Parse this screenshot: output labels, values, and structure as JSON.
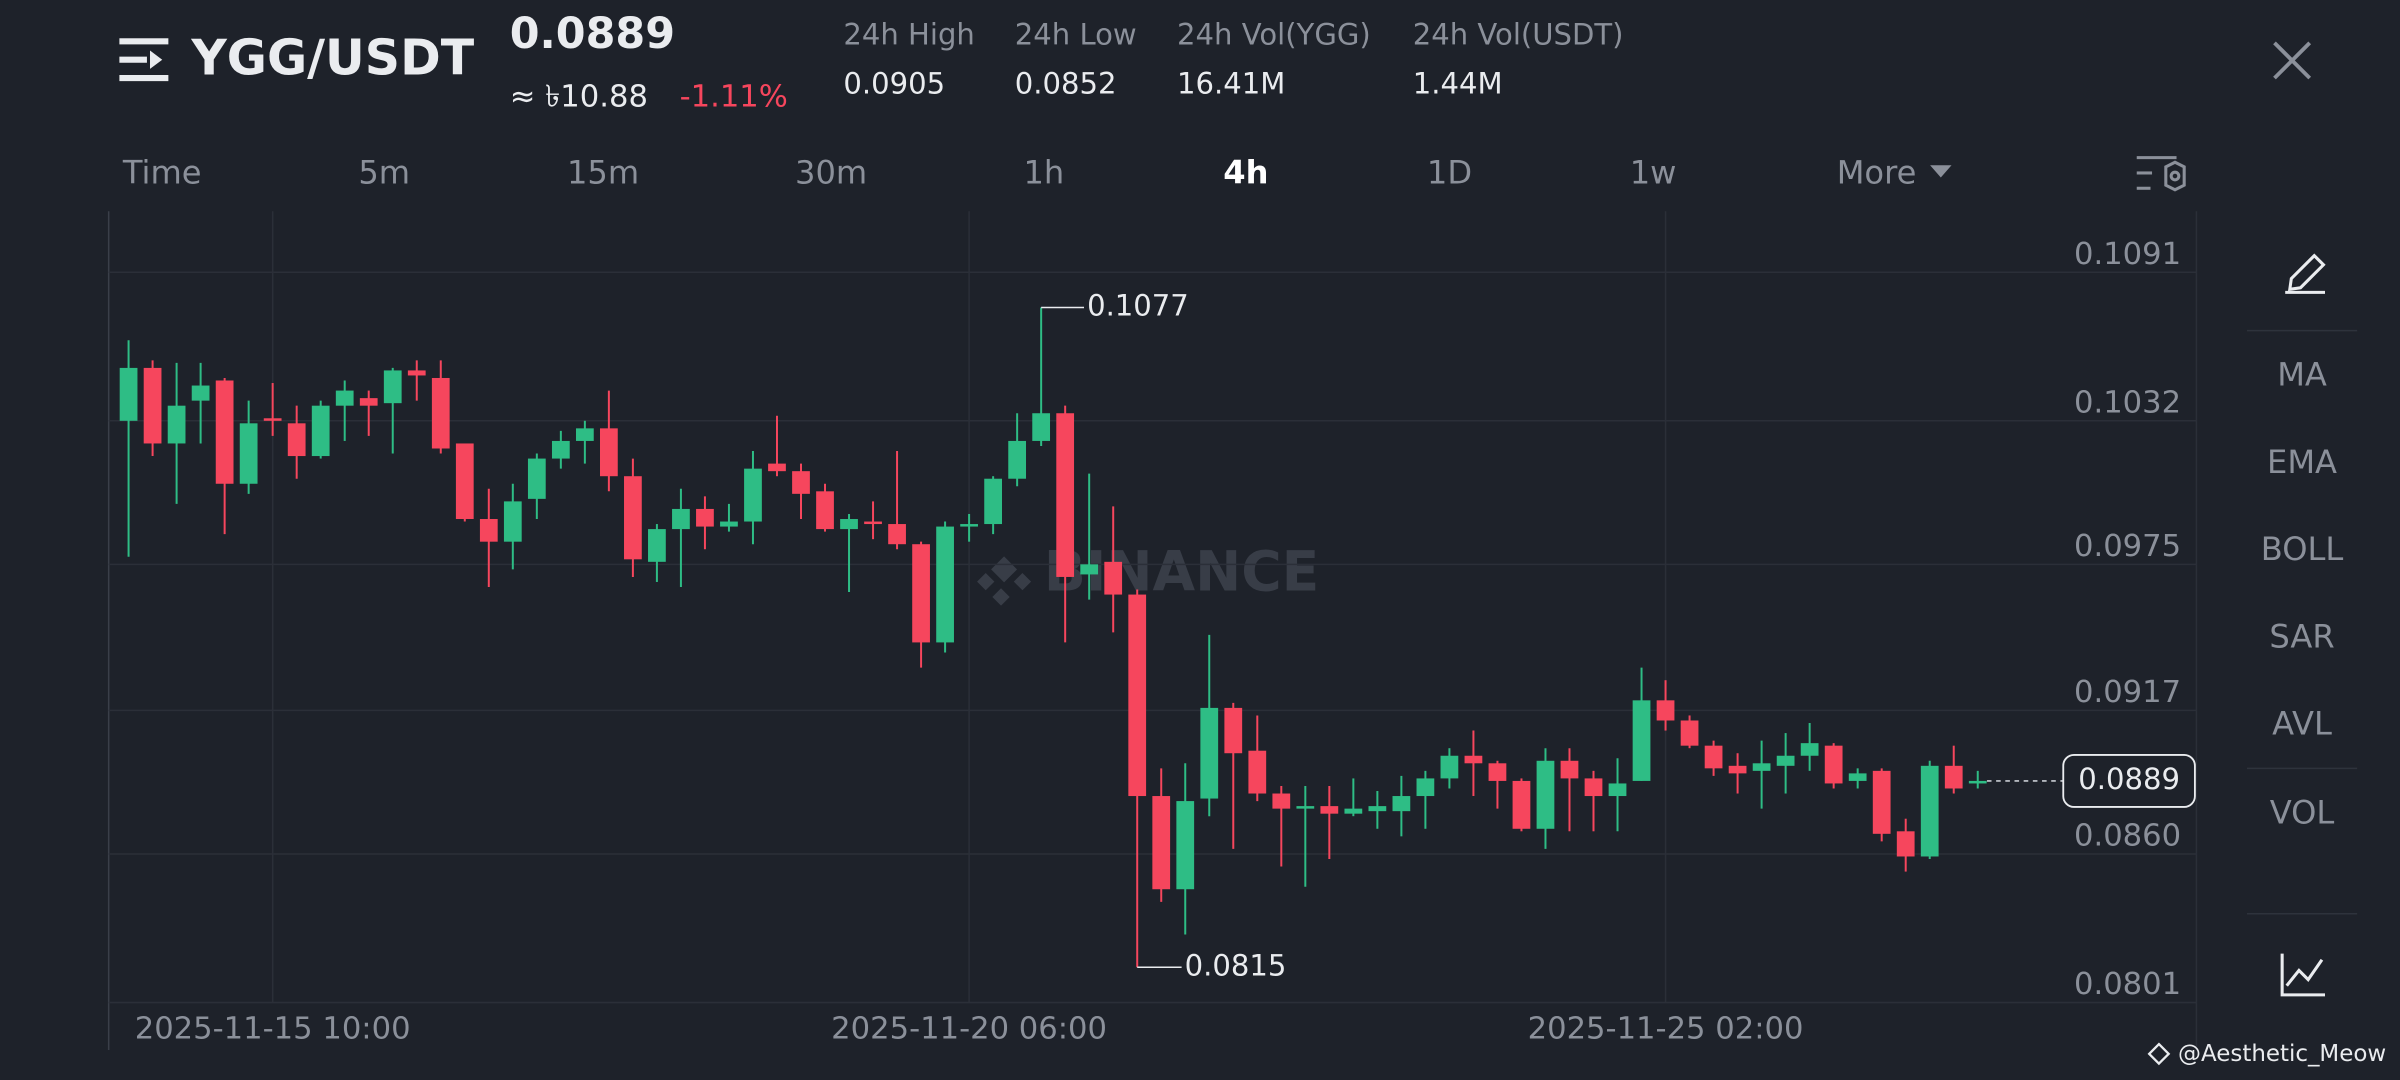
{
  "header": {
    "pair": "YGG/USDT",
    "price": "0.0889",
    "fiat_price": "≈ ৳10.88",
    "change": "-1.11%",
    "stats": [
      {
        "label": "24h High",
        "value": "0.0905"
      },
      {
        "label": "24h Low",
        "value": "0.0852"
      },
      {
        "label": "24h Vol(YGG)",
        "value": "16.41M"
      },
      {
        "label": "24h Vol(USDT)",
        "value": "1.44M"
      }
    ]
  },
  "intervals": [
    "Time",
    "5m",
    "15m",
    "30m",
    "1h",
    "4h",
    "1D",
    "1w",
    "More"
  ],
  "selected_interval": "4h",
  "indicators": [
    "MA",
    "EMA",
    "BOLL",
    "SAR",
    "AVL",
    "VOL"
  ],
  "watermark": "BINANCE",
  "credit": "@Aesthetic_Meow",
  "chart_data": {
    "type": "candlestick",
    "categories": [
      null,
      null,
      null,
      null,
      null,
      null,
      "2025-11-15 10:00",
      null,
      null,
      null,
      null,
      null,
      null,
      null,
      null,
      null,
      null,
      null,
      null,
      null,
      null,
      null,
      null,
      null,
      null,
      null,
      null,
      null,
      null,
      null,
      null,
      null,
      null,
      null,
      null,
      "2025-11-20 06:00",
      null,
      null,
      null,
      null,
      null,
      null,
      null,
      null,
      null,
      null,
      null,
      null,
      null,
      null,
      null,
      null,
      null,
      null,
      null,
      null,
      null,
      null,
      null,
      null,
      null,
      null,
      null,
      null,
      "2025-11-25 02:00",
      null,
      null,
      null,
      null,
      null,
      null,
      null,
      null,
      null,
      null,
      null,
      null,
      null
    ],
    "open": [
      0.1032,
      0.1053,
      0.1023,
      0.104,
      0.1048,
      0.1007,
      0.1033,
      0.1031,
      0.1018,
      0.1038,
      0.1041,
      0.1039,
      0.1052,
      0.1049,
      0.1023,
      0.0993,
      0.0984,
      0.1001,
      0.1017,
      0.1024,
      0.1029,
      0.101,
      0.0976,
      0.0989,
      0.0997,
      0.099,
      0.0992,
      0.1015,
      0.1012,
      0.1004,
      0.0989,
      0.0992,
      0.0991,
      0.0983,
      0.0944,
      0.099,
      0.0991,
      0.1009,
      0.1024,
      0.1035,
      0.0971,
      0.0976,
      0.0963,
      0.0883,
      0.0846,
      0.0882,
      0.0918,
      0.0901,
      0.0884,
      0.0878,
      0.0879,
      0.0876,
      0.0877,
      0.0877,
      0.0883,
      0.089,
      0.0899,
      0.0896,
      0.0889,
      0.087,
      0.0897,
      0.089,
      0.0883,
      0.0889,
      0.0921,
      0.0913,
      0.0903,
      0.0895,
      0.0893,
      0.0895,
      0.0899,
      0.0903,
      0.0889,
      0.0893,
      0.0869,
      0.0859,
      0.0895,
      0.0888
    ],
    "high": [
      0.1064,
      0.1056,
      0.1055,
      0.1055,
      0.1049,
      0.104,
      0.1047,
      0.1038,
      0.104,
      0.1048,
      0.1044,
      0.1053,
      0.1056,
      0.1056,
      0.1023,
      0.1005,
      0.1007,
      0.1019,
      0.1028,
      0.1032,
      0.1044,
      0.1017,
      0.0991,
      0.1005,
      0.1002,
      0.0999,
      0.102,
      0.1034,
      0.1015,
      0.1007,
      0.0995,
      0.1,
      0.102,
      0.0984,
      0.0992,
      0.0995,
      0.101,
      0.1035,
      0.1077,
      0.1038,
      0.1011,
      0.0998,
      0.0965,
      0.0894,
      0.0896,
      0.0947,
      0.092,
      0.0915,
      0.0887,
      0.0887,
      0.0887,
      0.089,
      0.0885,
      0.0891,
      0.0893,
      0.0902,
      0.0909,
      0.0897,
      0.089,
      0.0902,
      0.0902,
      0.0893,
      0.0898,
      0.0934,
      0.0929,
      0.0915,
      0.0905,
      0.09,
      0.0905,
      0.0908,
      0.0912,
      0.0904,
      0.0894,
      0.0894,
      0.0874,
      0.0897,
      0.0903,
      0.0893
    ],
    "low": [
      0.0978,
      0.1018,
      0.0999,
      0.1023,
      0.0987,
      0.1003,
      0.1026,
      0.1009,
      0.1017,
      0.1024,
      0.1026,
      0.1019,
      0.104,
      0.1019,
      0.0992,
      0.0966,
      0.0973,
      0.0993,
      0.1013,
      0.1015,
      0.1004,
      0.097,
      0.0968,
      0.0966,
      0.0981,
      0.0988,
      0.0983,
      0.101,
      0.0993,
      0.0988,
      0.0964,
      0.0985,
      0.0981,
      0.0934,
      0.094,
      0.0984,
      0.0987,
      0.1006,
      0.1022,
      0.0944,
      0.0961,
      0.0948,
      0.0815,
      0.0841,
      0.0828,
      0.0875,
      0.0862,
      0.0881,
      0.0855,
      0.0847,
      0.0858,
      0.0875,
      0.087,
      0.0867,
      0.087,
      0.0886,
      0.0883,
      0.0878,
      0.0869,
      0.0862,
      0.0869,
      0.0869,
      0.0869,
      0.0889,
      0.0909,
      0.0902,
      0.0891,
      0.0884,
      0.0878,
      0.0884,
      0.0893,
      0.0886,
      0.0886,
      0.0865,
      0.0853,
      0.0858,
      0.0884,
      0.0886
    ],
    "close": [
      0.1053,
      0.1023,
      0.1038,
      0.1046,
      0.1007,
      0.1031,
      0.1032,
      0.1018,
      0.1038,
      0.1044,
      0.1038,
      0.1052,
      0.105,
      0.1021,
      0.0993,
      0.0984,
      0.1,
      0.1017,
      0.1024,
      0.1029,
      0.101,
      0.0977,
      0.0989,
      0.0997,
      0.099,
      0.0992,
      0.1013,
      0.1012,
      0.1003,
      0.0989,
      0.0993,
      0.0991,
      0.0983,
      0.0944,
      0.099,
      0.0991,
      0.1009,
      0.1024,
      0.1035,
      0.097,
      0.0975,
      0.0963,
      0.0883,
      0.0846,
      0.0881,
      0.0918,
      0.09,
      0.0884,
      0.0878,
      0.0879,
      0.0876,
      0.0878,
      0.0879,
      0.0883,
      0.089,
      0.0899,
      0.0896,
      0.0889,
      0.087,
      0.0897,
      0.089,
      0.0883,
      0.0888,
      0.0921,
      0.0913,
      0.0903,
      0.0894,
      0.0892,
      0.0896,
      0.0899,
      0.0904,
      0.0888,
      0.0892,
      0.0868,
      0.0859,
      0.0895,
      0.0886,
      0.0889
    ],
    "up_color": "#2ebd85",
    "down_color": "#f6465d",
    "ylim": [
      0.0801,
      0.1114
    ],
    "yticks": [
      0.1091,
      0.1032,
      0.0975,
      0.0917,
      {
        "value": 0.086,
        "label": "0.0860"
      },
      0.0801
    ],
    "grid": true,
    "high_marker": 0.1077,
    "low_marker": 0.0815,
    "last_price": 0.0889
  }
}
